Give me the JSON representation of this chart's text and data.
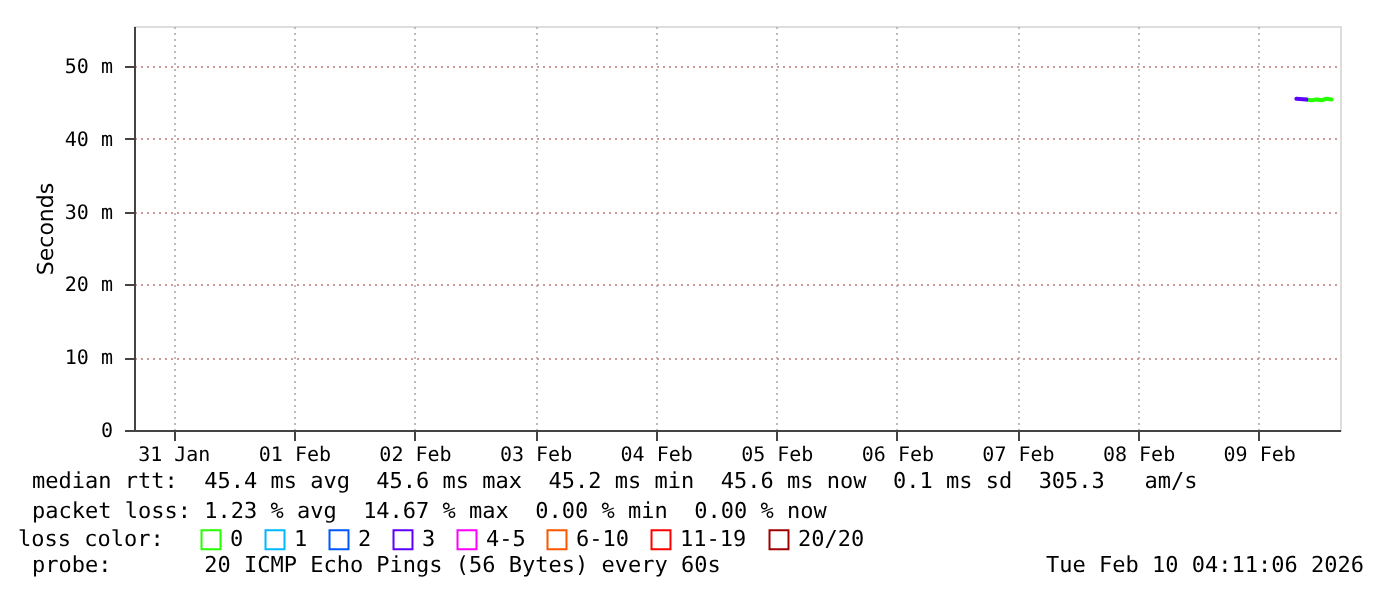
{
  "chart_data": {
    "type": "line",
    "ylabel": "Seconds",
    "legend_title": "loss color:",
    "legend": "bottom",
    "grid": true,
    "marker": "none",
    "line_style": "solid",
    "xlim": [
      "2026-01-31T04:11",
      "2026-02-10T04:11"
    ],
    "xticks": [
      {
        "value": "2026-01-31T12:00",
        "label": "31 Jan"
      },
      {
        "value": "2026-02-01T12:00",
        "label": "01 Feb"
      },
      {
        "value": "2026-02-02T12:00",
        "label": "02 Feb"
      },
      {
        "value": "2026-02-03T12:00",
        "label": "03 Feb"
      },
      {
        "value": "2026-02-04T12:00",
        "label": "04 Feb"
      },
      {
        "value": "2026-02-05T12:00",
        "label": "05 Feb"
      },
      {
        "value": "2026-02-06T12:00",
        "label": "06 Feb"
      },
      {
        "value": "2026-02-07T12:00",
        "label": "07 Feb"
      },
      {
        "value": "2026-02-08T12:00",
        "label": "08 Feb"
      },
      {
        "value": "2026-02-09T12:00",
        "label": "09 Feb"
      }
    ],
    "ylim": [
      0,
      55.5
    ],
    "yticks": [
      0,
      {
        "value": 10,
        "label": "10 m"
      },
      {
        "value": 20,
        "label": "20 m"
      },
      {
        "value": 30,
        "label": "30 m"
      },
      {
        "value": 40,
        "label": "40 m"
      },
      {
        "value": 50,
        "label": "50 m"
      }
    ],
    "series": [
      {
        "name": "0",
        "color": "#26ff00",
        "x": [
          "2026-02-09T21:30",
          "2026-02-09T22:30",
          "2026-02-09T23:30",
          "2026-02-10T00:30",
          "2026-02-10T01:30",
          "2026-02-10T02:30"
        ],
        "values": [
          45.4,
          45.3,
          45.4,
          45.3,
          45.5,
          45.4
        ]
      },
      {
        "name": "1",
        "color": "#00b8ff"
      },
      {
        "name": "2",
        "color": "#0059ff"
      },
      {
        "name": "3",
        "color": "#5e00ff",
        "x": [
          "2026-02-09T19:30",
          "2026-02-09T21:30"
        ],
        "values": [
          45.5,
          45.4
        ]
      },
      {
        "name": "4-5",
        "color": "#ff00ff"
      },
      {
        "name": "6-10",
        "color": "#ff5500"
      },
      {
        "name": "11-19",
        "color": "#ff0000"
      },
      {
        "name": "20/20",
        "color": "#a10000"
      }
    ],
    "annotations": [
      "median rtt:  45.4 ms avg  45.6 ms max  45.2 ms min  45.6 ms now  0.1 ms sd  305.3   am/s",
      "packet loss: 1.23 % avg  14.67 % max  0.00 % min  0.00 % now",
      "probe:       20 ICMP Echo Pings (56 Bytes) every 60s",
      "Tue Feb 10 04:11:06 2026"
    ]
  }
}
